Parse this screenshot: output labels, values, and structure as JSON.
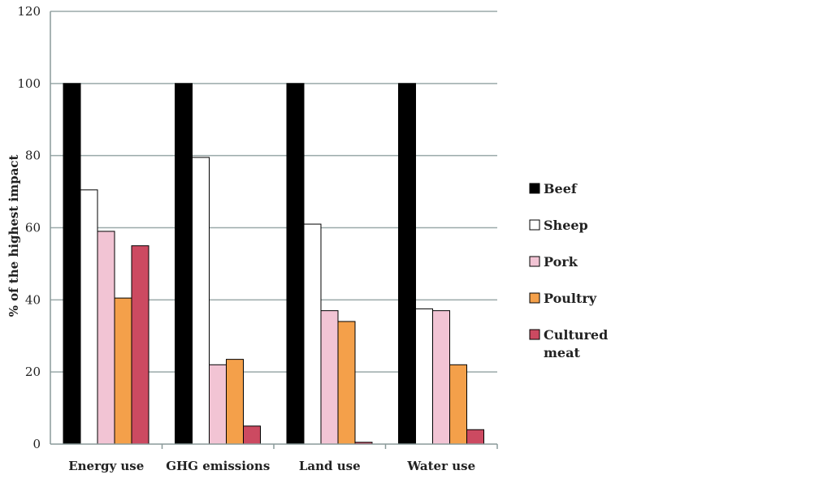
{
  "chart_data": {
    "type": "bar",
    "title": "",
    "xlabel": "",
    "ylabel": "% of the highest impact",
    "ylim": [
      0,
      120
    ],
    "yticks": [
      0,
      20,
      40,
      60,
      80,
      100,
      120
    ],
    "grid": true,
    "legend_position": "right",
    "categories": [
      "Energy use",
      "GHG emissions",
      "Land use",
      "Water use"
    ],
    "series": [
      {
        "name": "Beef",
        "color": "#000000",
        "values": [
          100,
          100,
          100,
          100
        ]
      },
      {
        "name": "Sheep",
        "color": "#ffffff",
        "values": [
          70.5,
          79.5,
          61,
          37.5
        ]
      },
      {
        "name": "Pork",
        "color": "#f2c4d4",
        "values": [
          59,
          22,
          37,
          37
        ]
      },
      {
        "name": "Poultry",
        "color": "#f4a04a",
        "values": [
          40.5,
          23.5,
          34,
          22
        ]
      },
      {
        "name": "Cultured\nmeat",
        "color": "#cc4a61",
        "values": [
          55,
          5,
          0.5,
          4
        ]
      }
    ]
  }
}
